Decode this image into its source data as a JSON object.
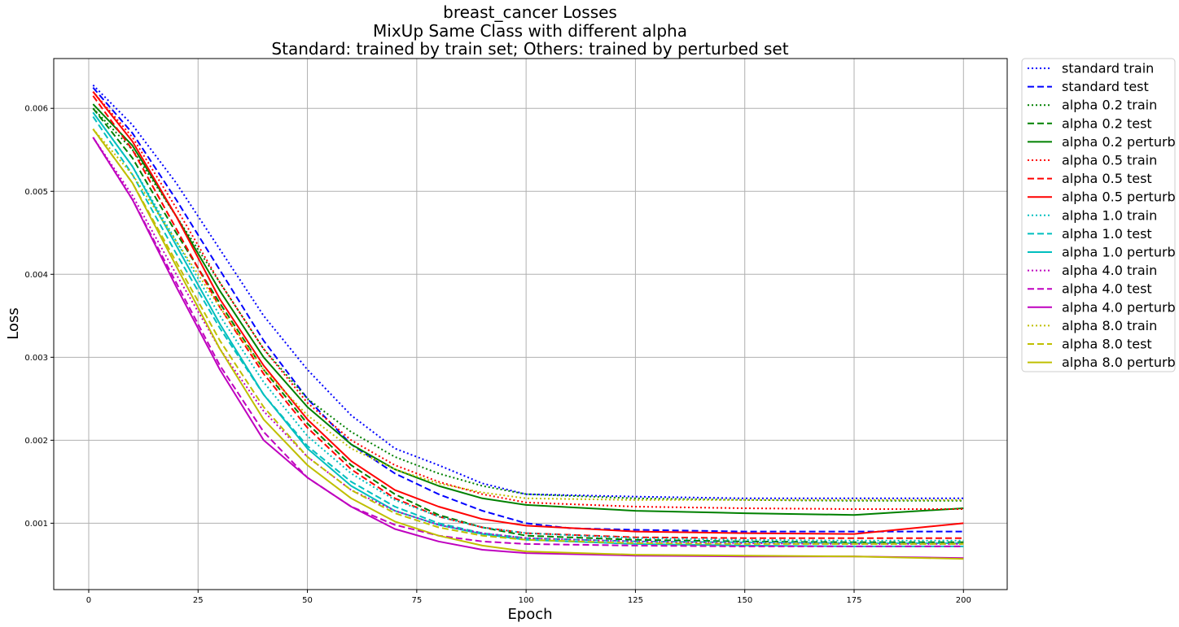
{
  "chart_data": {
    "type": "line",
    "title_lines": [
      "breast_cancer Losses",
      "MixUp Same Class with different alpha",
      "Standard: trained by train set; Others: trained by perturbed set"
    ],
    "xlabel": "Epoch",
    "ylabel": "Loss",
    "xlim": [
      -8,
      210
    ],
    "ylim": [
      0.0002,
      0.0066
    ],
    "xticks": [
      0,
      25,
      50,
      75,
      100,
      125,
      150,
      175,
      200
    ],
    "yticks": [
      0.001,
      0.002,
      0.003,
      0.004,
      0.005,
      0.006
    ],
    "ytick_labels": [
      "0.001",
      "0.002",
      "0.003",
      "0.004",
      "0.005",
      "0.006"
    ],
    "grid": true,
    "legend_position": "outside-right",
    "series": [
      {
        "name": "standard train",
        "color": "#0000ff",
        "style": "dotted",
        "x": [
          1,
          10,
          20,
          30,
          40,
          50,
          60,
          70,
          80,
          90,
          100,
          125,
          150,
          175,
          200
        ],
        "y": [
          0.00628,
          0.0058,
          0.0051,
          0.0043,
          0.0035,
          0.00285,
          0.0023,
          0.0019,
          0.0017,
          0.00148,
          0.00135,
          0.00132,
          0.0013,
          0.0013,
          0.0013
        ]
      },
      {
        "name": "standard test",
        "color": "#0000ff",
        "style": "dashed",
        "x": [
          1,
          10,
          20,
          30,
          40,
          50,
          60,
          70,
          80,
          90,
          100,
          110,
          125,
          150,
          175,
          200
        ],
        "y": [
          0.00625,
          0.0057,
          0.0049,
          0.00405,
          0.0032,
          0.0025,
          0.00195,
          0.0016,
          0.00135,
          0.00115,
          0.001,
          0.00094,
          0.00092,
          0.0009,
          0.0009,
          0.0009
        ]
      },
      {
        "name": "alpha 0.2 train",
        "color": "#008000",
        "style": "dotted",
        "x": [
          1,
          10,
          20,
          30,
          40,
          50,
          60,
          70,
          80,
          90,
          100,
          125,
          150,
          175,
          200
        ],
        "y": [
          0.006,
          0.0055,
          0.0047,
          0.0039,
          0.0031,
          0.0025,
          0.0021,
          0.0018,
          0.0016,
          0.00145,
          0.00135,
          0.0013,
          0.00128,
          0.00127,
          0.00127
        ]
      },
      {
        "name": "alpha 0.2 test",
        "color": "#008000",
        "style": "dashed",
        "x": [
          1,
          10,
          20,
          30,
          40,
          50,
          60,
          70,
          80,
          90,
          100,
          125,
          150,
          175,
          200
        ],
        "y": [
          0.006,
          0.0054,
          0.0045,
          0.00365,
          0.00285,
          0.0022,
          0.0017,
          0.00135,
          0.0011,
          0.00095,
          0.00085,
          0.0008,
          0.00078,
          0.00077,
          0.00077
        ]
      },
      {
        "name": "alpha 0.2 perturb",
        "color": "#008000",
        "style": "solid",
        "x": [
          1,
          10,
          20,
          30,
          40,
          50,
          60,
          70,
          80,
          90,
          100,
          125,
          150,
          175,
          200
        ],
        "y": [
          0.00605,
          0.00555,
          0.0047,
          0.0038,
          0.003,
          0.0024,
          0.00195,
          0.00165,
          0.00145,
          0.0013,
          0.00122,
          0.00115,
          0.00112,
          0.0011,
          0.00118
        ]
      },
      {
        "name": "alpha 0.5 train",
        "color": "#ff0000",
        "style": "dotted",
        "x": [
          1,
          10,
          20,
          30,
          40,
          50,
          60,
          70,
          80,
          90,
          100,
          125,
          150,
          175,
          200
        ],
        "y": [
          0.0062,
          0.00565,
          0.0048,
          0.0039,
          0.0031,
          0.00245,
          0.002,
          0.0017,
          0.0015,
          0.00135,
          0.00125,
          0.0012,
          0.00118,
          0.00117,
          0.00117
        ]
      },
      {
        "name": "alpha 0.5 test",
        "color": "#ff0000",
        "style": "dashed",
        "x": [
          1,
          10,
          20,
          30,
          40,
          50,
          60,
          70,
          80,
          90,
          100,
          125,
          150,
          175,
          200
        ],
        "y": [
          0.00615,
          0.0055,
          0.00455,
          0.0036,
          0.0028,
          0.00215,
          0.00165,
          0.0013,
          0.00108,
          0.00095,
          0.00088,
          0.00083,
          0.00082,
          0.00082,
          0.00082
        ]
      },
      {
        "name": "alpha 0.5 perturb",
        "color": "#ff0000",
        "style": "solid",
        "x": [
          1,
          10,
          20,
          30,
          40,
          50,
          60,
          70,
          80,
          90,
          100,
          125,
          150,
          175,
          200
        ],
        "y": [
          0.0062,
          0.0056,
          0.0047,
          0.0037,
          0.0029,
          0.00225,
          0.00175,
          0.0014,
          0.0012,
          0.00105,
          0.00097,
          0.0009,
          0.00088,
          0.00087,
          0.001
        ]
      },
      {
        "name": "alpha 1.0 train",
        "color": "#00bfbf",
        "style": "dotted",
        "x": [
          1,
          10,
          20,
          30,
          40,
          50,
          60,
          70,
          80,
          90,
          100,
          125,
          150,
          175,
          200
        ],
        "y": [
          0.00595,
          0.0053,
          0.0044,
          0.0035,
          0.0027,
          0.00205,
          0.0016,
          0.00128,
          0.00108,
          0.00095,
          0.00088,
          0.00082,
          0.0008,
          0.00079,
          0.00079
        ]
      },
      {
        "name": "alpha 1.0 test",
        "color": "#00bfbf",
        "style": "dashed",
        "x": [
          1,
          10,
          20,
          30,
          40,
          50,
          60,
          70,
          80,
          90,
          100,
          125,
          150,
          175,
          200
        ],
        "y": [
          0.0059,
          0.0052,
          0.00425,
          0.00335,
          0.00255,
          0.00193,
          0.0015,
          0.0012,
          0.001,
          0.00088,
          0.00082,
          0.00078,
          0.00077,
          0.00076,
          0.00076
        ]
      },
      {
        "name": "alpha 1.0 perturb",
        "color": "#00bfbf",
        "style": "solid",
        "x": [
          1,
          10,
          20,
          30,
          40,
          50,
          60,
          70,
          80,
          90,
          100,
          125,
          150,
          175,
          200
        ],
        "y": [
          0.00595,
          0.0053,
          0.00435,
          0.0034,
          0.00255,
          0.0019,
          0.00145,
          0.00115,
          0.00098,
          0.00087,
          0.0008,
          0.00075,
          0.00073,
          0.00072,
          0.00072
        ]
      },
      {
        "name": "alpha 4.0 train",
        "color": "#bf00bf",
        "style": "dotted",
        "x": [
          1,
          10,
          20,
          30,
          40,
          50,
          60,
          70,
          80,
          90,
          100,
          125,
          150,
          175,
          200
        ],
        "y": [
          0.00565,
          0.00495,
          0.004,
          0.0031,
          0.00235,
          0.0018,
          0.0014,
          0.00115,
          0.00098,
          0.00088,
          0.00082,
          0.00078,
          0.00076,
          0.00075,
          0.00075
        ]
      },
      {
        "name": "alpha 4.0 test",
        "color": "#bf00bf",
        "style": "dashed",
        "x": [
          1,
          10,
          20,
          30,
          40,
          50,
          60,
          70,
          80,
          90,
          100,
          125,
          150,
          175,
          200
        ],
        "y": [
          0.00565,
          0.0049,
          0.0039,
          0.0029,
          0.0021,
          0.00155,
          0.0012,
          0.00098,
          0.00085,
          0.00078,
          0.00075,
          0.00073,
          0.00072,
          0.00072,
          0.00072
        ]
      },
      {
        "name": "alpha 4.0 perturb",
        "color": "#bf00bf",
        "style": "solid",
        "x": [
          1,
          10,
          20,
          30,
          40,
          50,
          60,
          70,
          80,
          90,
          100,
          125,
          150,
          175,
          200
        ],
        "y": [
          0.00565,
          0.0049,
          0.00385,
          0.00285,
          0.002,
          0.00155,
          0.0012,
          0.00093,
          0.00078,
          0.00068,
          0.00064,
          0.00061,
          0.0006,
          0.0006,
          0.00058
        ]
      },
      {
        "name": "alpha 8.0 train",
        "color": "#bfbf00",
        "style": "dotted",
        "x": [
          1,
          10,
          20,
          30,
          40,
          50,
          60,
          70,
          80,
          90,
          100,
          125,
          150,
          175,
          200
        ],
        "y": [
          0.00575,
          0.0052,
          0.0044,
          0.0036,
          0.00285,
          0.0023,
          0.0019,
          0.00165,
          0.00148,
          0.00137,
          0.0013,
          0.00128,
          0.00128,
          0.00128,
          0.00128
        ]
      },
      {
        "name": "alpha 8.0 test",
        "color": "#bfbf00",
        "style": "dashed",
        "x": [
          1,
          10,
          20,
          30,
          40,
          50,
          60,
          70,
          80,
          90,
          100,
          125,
          150,
          175,
          200
        ],
        "y": [
          0.00575,
          0.0051,
          0.00415,
          0.0032,
          0.0024,
          0.0018,
          0.0014,
          0.00112,
          0.00095,
          0.00085,
          0.0008,
          0.00076,
          0.00075,
          0.00075,
          0.00075
        ]
      },
      {
        "name": "alpha 8.0 perturb",
        "color": "#bfbf00",
        "style": "solid",
        "x": [
          1,
          10,
          20,
          30,
          40,
          50,
          60,
          70,
          80,
          90,
          100,
          125,
          150,
          175,
          200
        ],
        "y": [
          0.00575,
          0.0051,
          0.0041,
          0.0031,
          0.00225,
          0.0017,
          0.0013,
          0.00102,
          0.00085,
          0.00073,
          0.00066,
          0.00062,
          0.00061,
          0.0006,
          0.00057
        ]
      }
    ]
  }
}
